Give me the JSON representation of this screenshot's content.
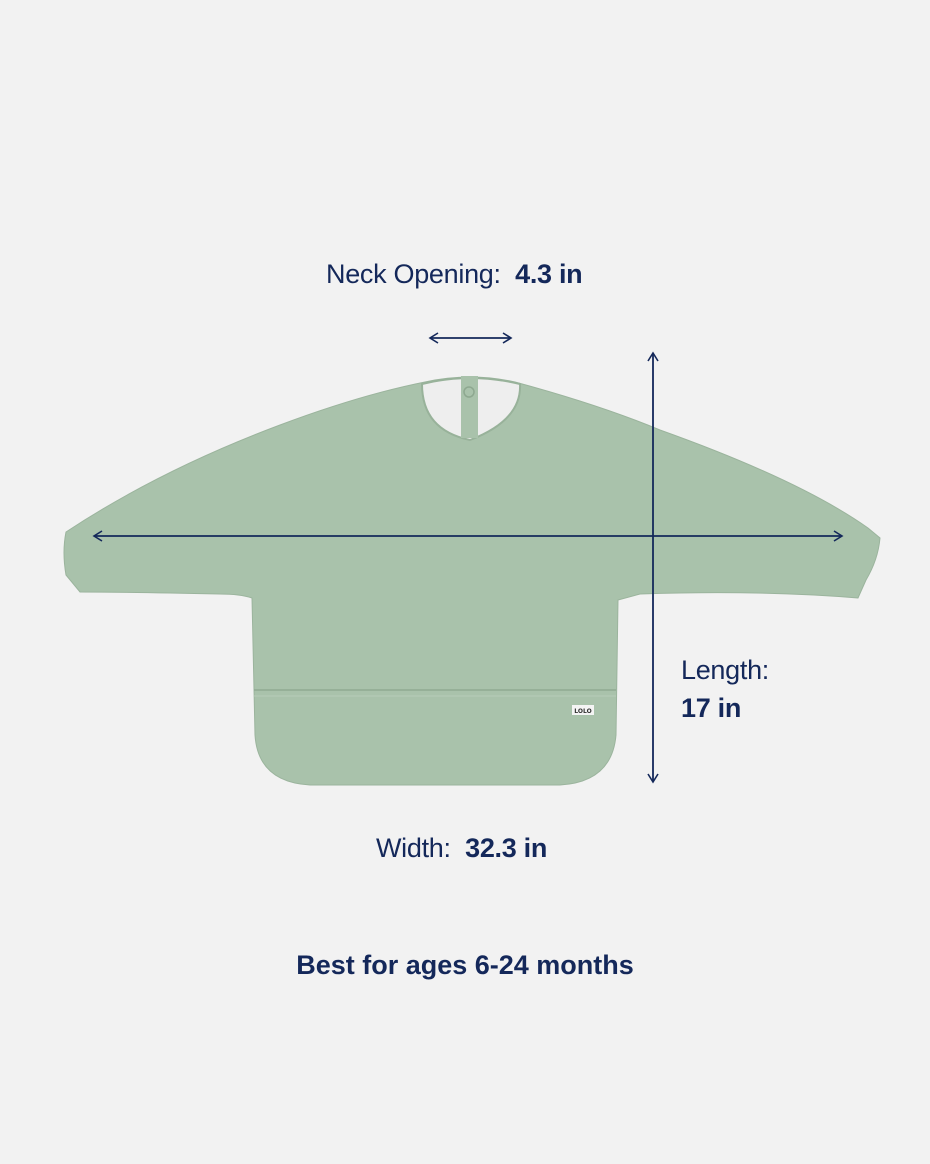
{
  "labels": {
    "neck": {
      "name": "Neck Opening:",
      "value": "4.3 in"
    },
    "length": {
      "name": "Length:",
      "value": "17 in"
    },
    "width": {
      "name": "Width:",
      "value": "32.3 in"
    },
    "ages": "Best for ages 6-24 months"
  },
  "product": {
    "brand_tag": "LOLO",
    "color": "#a9c2ab"
  },
  "colors": {
    "background": "#f2f2f2",
    "text": "#14285a",
    "arrow": "#14285a"
  }
}
